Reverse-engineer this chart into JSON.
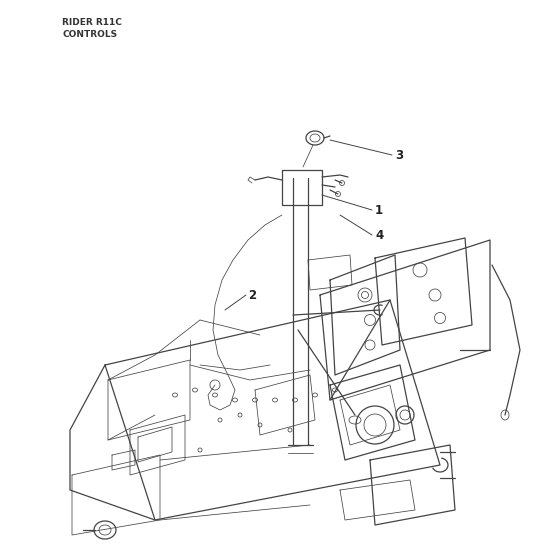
{
  "title_line1": "RIDER R11C",
  "title_line2": "CONTROLS",
  "title_fontsize": 6.5,
  "title_color": "#333333",
  "bg_color": "#ffffff",
  "line_color": "#444444",
  "label_color": "#222222",
  "label_fontsize": 8.5,
  "lw_main": 0.9,
  "lw_thin": 0.55,
  "lw_thick": 1.2
}
